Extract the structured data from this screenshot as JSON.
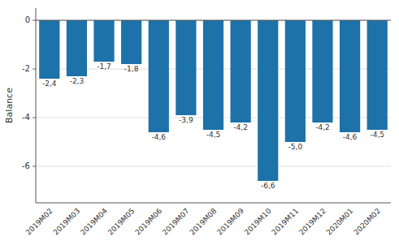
{
  "chart_data": {
    "type": "bar",
    "categories": [
      "2019M02",
      "2019M03",
      "2019M04",
      "2019M05",
      "2019M06",
      "2019M07",
      "2019M08",
      "2019M09",
      "2019M10",
      "2019M11",
      "2019M12",
      "2020M01",
      "2020M02"
    ],
    "values": [
      -2.4,
      -2.3,
      -1.7,
      -1.8,
      -4.6,
      -3.9,
      -4.5,
      -4.2,
      -6.6,
      -5.0,
      -4.2,
      -4.6,
      -4.5
    ],
    "value_labels": [
      "-2,4",
      "-2,3",
      "-1,7",
      "-1,8",
      "-4,6",
      "-3,9",
      "-4,5",
      "-4,2",
      "-6,6",
      "-5,0",
      "-4,2",
      "-4,6",
      "-4,5"
    ],
    "data_labels": true,
    "color": "#1d72aa",
    "ylabel": "Balance",
    "ylim": [
      -7.5,
      0.5
    ],
    "yticks": [
      0,
      -2,
      -4,
      -6
    ],
    "grid": true
  }
}
